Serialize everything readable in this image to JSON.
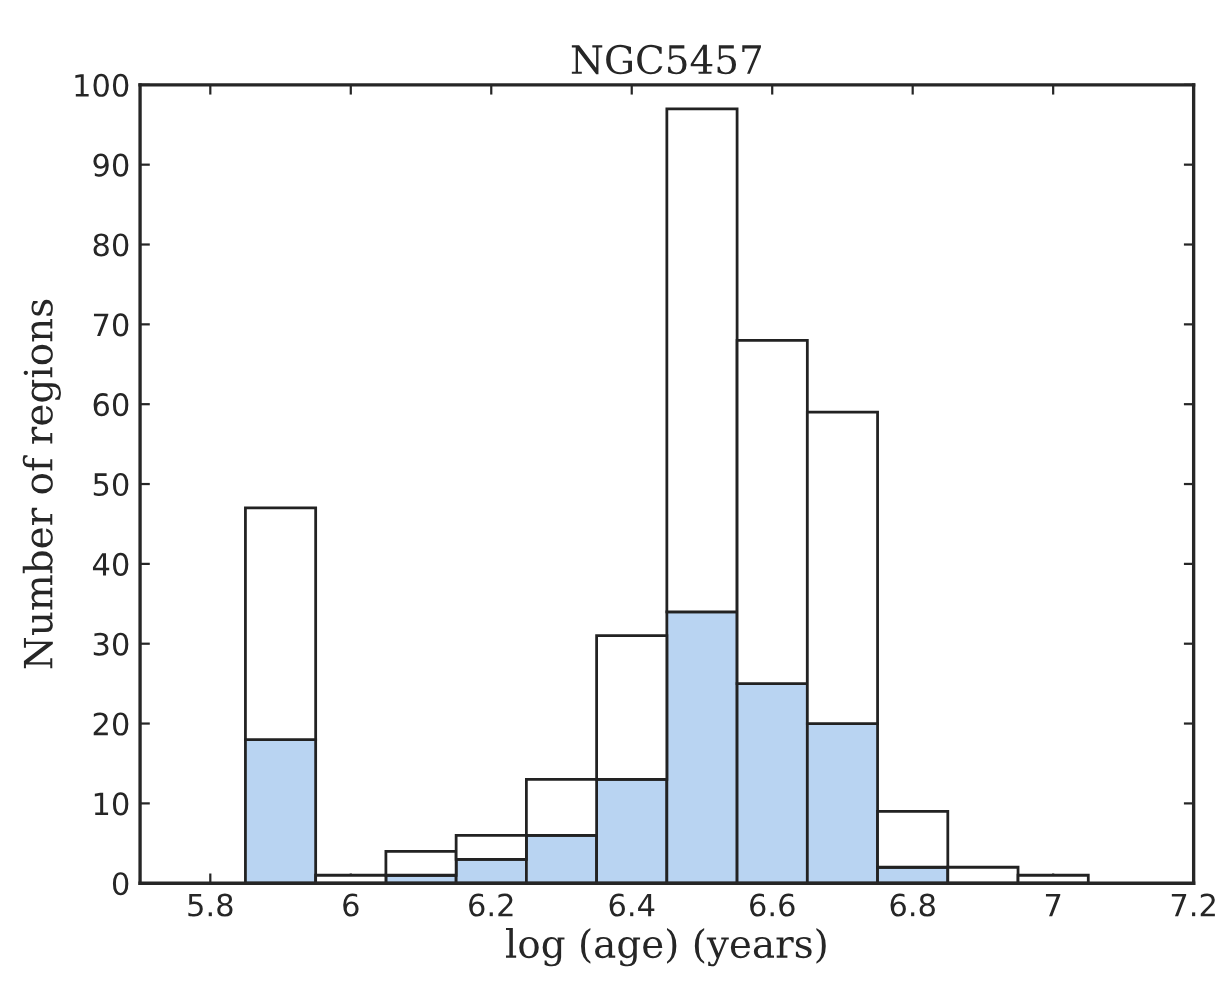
{
  "chart_data": {
    "type": "bar",
    "title": "NGC5457",
    "xlabel": "log (age) (years)",
    "ylabel": "Number of regions",
    "x": [
      5.9,
      6.0,
      6.1,
      6.2,
      6.3,
      6.4,
      6.5,
      6.6,
      6.7,
      6.8,
      6.9,
      7.0
    ],
    "series": [
      {
        "color": "#b9d4f2",
        "values": [
          18,
          null,
          1,
          3,
          6,
          13,
          34,
          25,
          20,
          2,
          null,
          null
        ]
      },
      {
        "color": "#ffffff",
        "values": [
          29,
          1,
          3,
          3,
          7,
          18,
          63,
          43,
          39,
          7,
          2,
          1
        ]
      }
    ],
    "stacked": true,
    "xlim": [
      5.7,
      7.2
    ],
    "xticks": [
      5.8,
      6,
      6.2,
      6.4,
      6.6,
      6.8,
      7,
      7.2
    ],
    "ylim": [
      0,
      100
    ],
    "yticks": [
      0,
      10,
      20,
      30,
      40,
      50,
      60,
      70,
      80,
      90,
      100
    ],
    "grid": false
  }
}
